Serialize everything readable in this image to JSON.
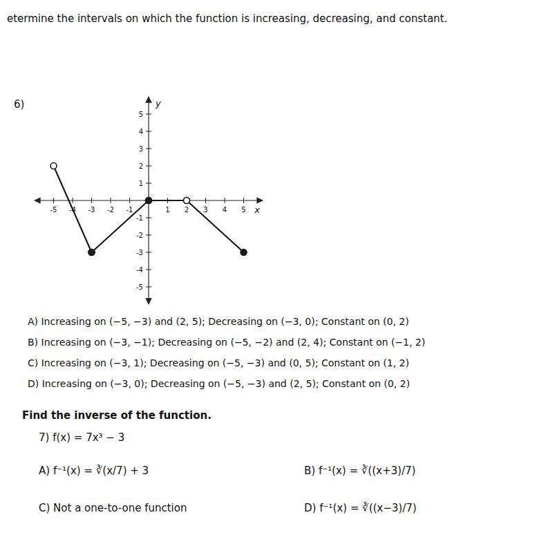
{
  "chart_data": {
    "type": "line",
    "title": "etermine the intervals on which the function is increasing, decreasing, and constant.",
    "xlabel": "x",
    "ylabel": "y",
    "color": "#1a1a1a",
    "grid": false,
    "xlim": [
      -6,
      6
    ],
    "ylim": [
      -6,
      6
    ],
    "xticks": [
      -5,
      -4,
      -3,
      -2,
      -1,
      1,
      2,
      3,
      4,
      5
    ],
    "yticks": [
      -5,
      -4,
      -3,
      -2,
      -1,
      1,
      2,
      3,
      4,
      5
    ],
    "series": [
      {
        "x": [
          -5,
          -3
        ],
        "values": [
          2,
          -3
        ],
        "marker": "open-filled"
      },
      {
        "x": [
          -3,
          0
        ],
        "values": [
          -3,
          0
        ],
        "marker": "filled-filled"
      },
      {
        "x": [
          0,
          2
        ],
        "values": [
          0,
          0
        ],
        "marker": "filled-open"
      },
      {
        "x": [
          2,
          5
        ],
        "values": [
          0,
          -3
        ],
        "marker": "open-filled"
      }
    ],
    "annotations": [
      "6)",
      "A) Increasing on (−5, −3) and (2, 5); Decreasing on (−3, 0); Constant on (0, 2)",
      "B) Increasing on (−3, −1); Decreasing on (−5, −2) and (2, 4); Constant on (−1, 2)",
      "C) Increasing on (−3, 1); Decreasing on (−5, −3) and (0, 5); Constant on (1, 2)",
      "D) Increasing on (−3, 0); Decreasing on (−5, −3) and (2, 5); Constant on (0, 2)",
      "Find the inverse of the function.",
      "7)  f(x) = 7x³ − 3",
      "A) f⁻¹(x) = ∛(x/7) + 3",
      "B) f⁻¹(x) = ∛((x+3)/7)",
      "C) Not a one-to-one function",
      "D) f⁻¹(x) = ∛((x−3)/7)"
    ]
  }
}
